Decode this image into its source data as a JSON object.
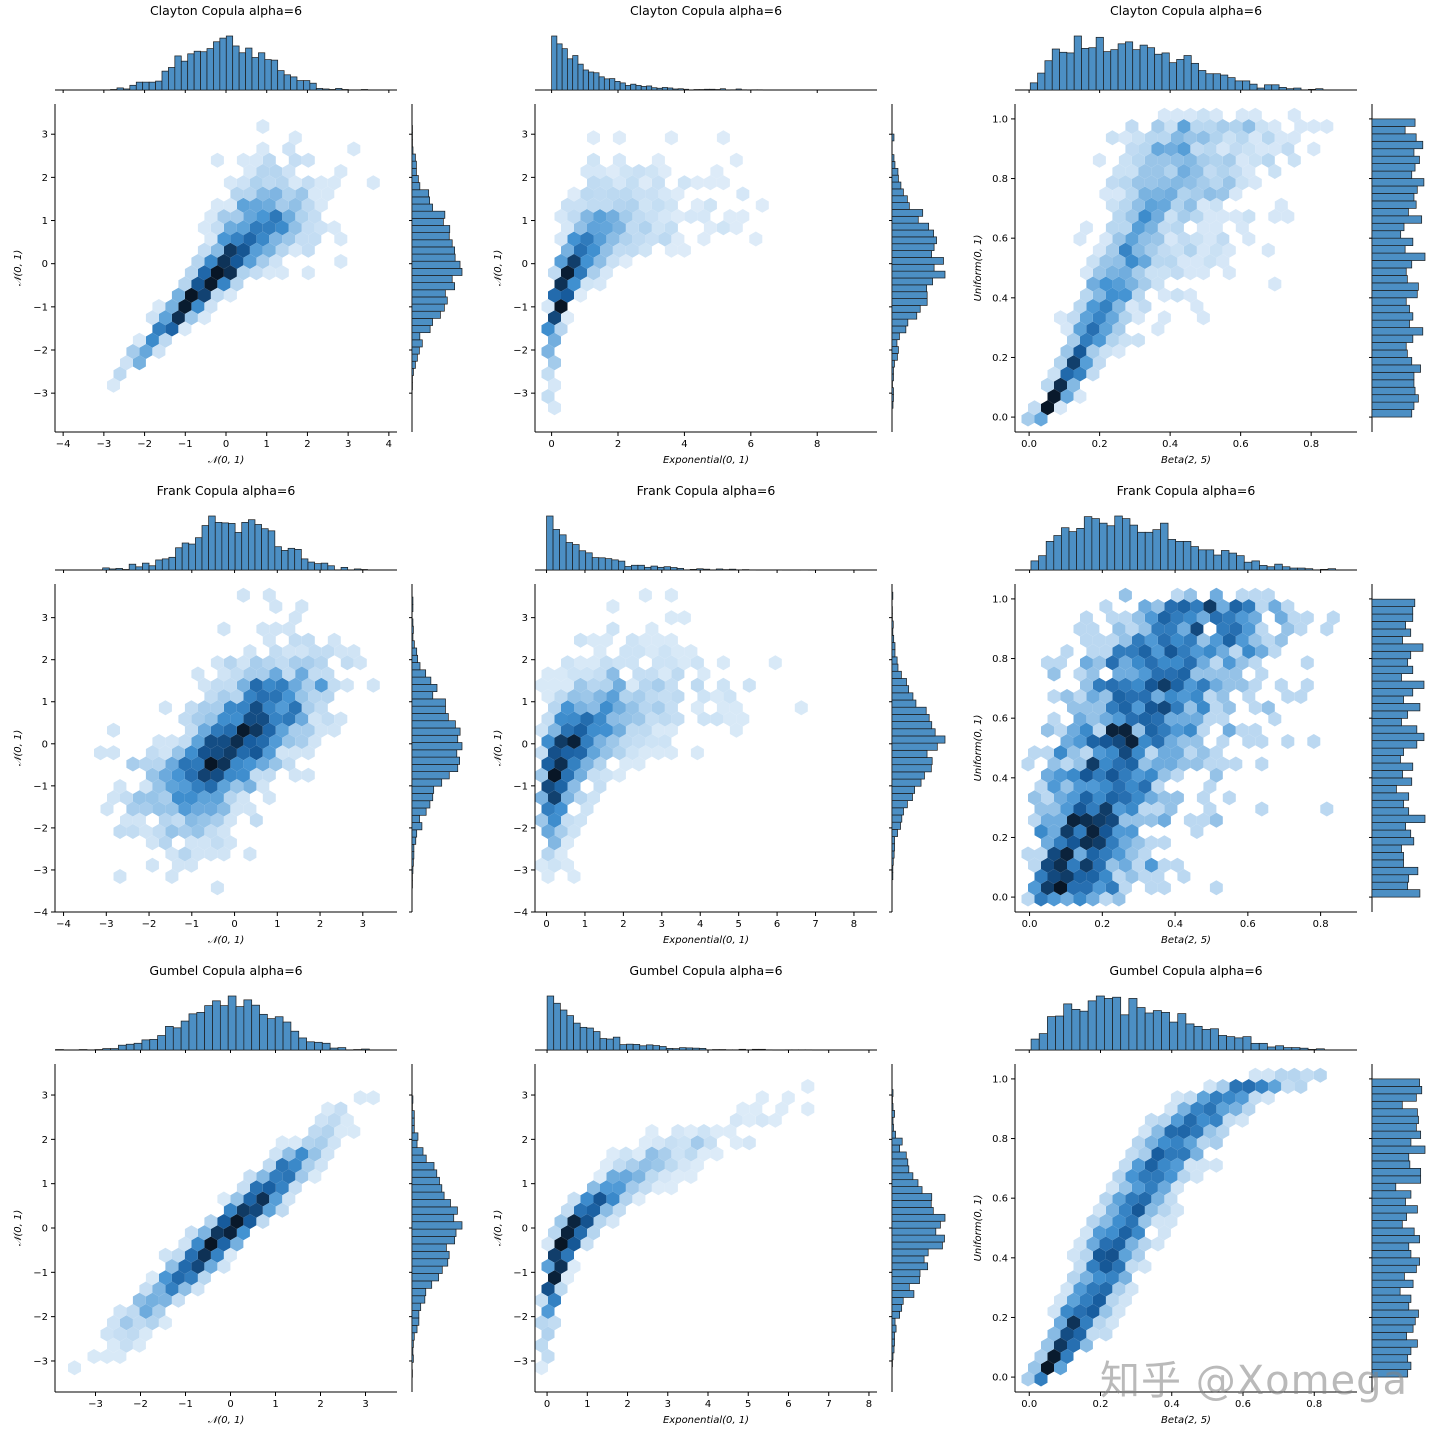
{
  "watermark": "知乎 @Xomega",
  "colors": {
    "bar": "#4c8fc4",
    "bar_edge": "#1a1a1a",
    "hex_light": "#e8f1fb",
    "hex_mid": "#3f8fd2",
    "hex_dark": "#0b1e33",
    "axis": "#000000"
  },
  "chart_data": [
    {
      "type": "hexbin",
      "title": "Clayton Copula alpha=6",
      "xlabel": "𝒩(0, 1)",
      "ylabel": "𝒩(0, 1)",
      "xlim": [
        -4.2,
        4.2
      ],
      "ylim": [
        -3.9,
        3.7
      ],
      "xticks": [
        -4,
        -3,
        -2,
        -1,
        0,
        1,
        2,
        3,
        4
      ],
      "yticks": [
        -3,
        -2,
        -1,
        0,
        1,
        2,
        3
      ],
      "copula": "clayton",
      "margin_x": "normal",
      "margin_y": "normal"
    },
    {
      "type": "hexbin",
      "title": "Clayton Copula alpha=6",
      "xlabel": "Exponential(0, 1)",
      "ylabel": "𝒩(0, 1)",
      "xlim": [
        -0.5,
        9.8
      ],
      "ylim": [
        -3.9,
        3.7
      ],
      "xticks": [
        0,
        2,
        4,
        6,
        8
      ],
      "yticks": [
        -3,
        -2,
        -1,
        0,
        1,
        2,
        3
      ],
      "copula": "clayton",
      "margin_x": "exponential",
      "margin_y": "normal"
    },
    {
      "type": "hexbin",
      "title": "Clayton Copula alpha=6",
      "xlabel": "Beta(2, 5)",
      "ylabel": "Uniform(0, 1)",
      "xlim": [
        -0.04,
        0.93
      ],
      "ylim": [
        -0.05,
        1.05
      ],
      "xticks": [
        0.0,
        0.2,
        0.4,
        0.6,
        0.8
      ],
      "yticks": [
        0.0,
        0.2,
        0.4,
        0.6,
        0.8,
        1.0
      ],
      "copula": "clayton",
      "margin_x": "beta",
      "margin_y": "uniform"
    },
    {
      "type": "hexbin",
      "title": "Frank Copula alpha=6",
      "xlabel": "𝒩(0, 1)",
      "ylabel": "𝒩(0, 1)",
      "xlim": [
        -4.2,
        3.8
      ],
      "ylim": [
        -4.0,
        3.8
      ],
      "xticks": [
        -4,
        -3,
        -2,
        -1,
        0,
        1,
        2,
        3
      ],
      "yticks": [
        -4,
        -3,
        -2,
        -1,
        0,
        1,
        2,
        3
      ],
      "copula": "frank",
      "margin_x": "normal",
      "margin_y": "normal"
    },
    {
      "type": "hexbin",
      "title": "Frank Copula alpha=6",
      "xlabel": "Exponential(0, 1)",
      "ylabel": "𝒩(0, 1)",
      "xlim": [
        -0.3,
        8.6
      ],
      "ylim": [
        -4.0,
        3.8
      ],
      "xticks": [
        0,
        1,
        2,
        3,
        4,
        5,
        6,
        7,
        8
      ],
      "yticks": [
        -4,
        -3,
        -2,
        -1,
        0,
        1,
        2,
        3
      ],
      "copula": "frank",
      "margin_x": "exponential",
      "margin_y": "normal"
    },
    {
      "type": "hexbin",
      "title": "Frank Copula alpha=6",
      "xlabel": "Beta(2, 5)",
      "ylabel": "Uniform(0, 1)",
      "xlim": [
        -0.04,
        0.9
      ],
      "ylim": [
        -0.05,
        1.05
      ],
      "xticks": [
        0.0,
        0.2,
        0.4,
        0.6,
        0.8
      ],
      "yticks": [
        0.0,
        0.2,
        0.4,
        0.6,
        0.8,
        1.0
      ],
      "copula": "frank",
      "margin_x": "beta",
      "margin_y": "uniform"
    },
    {
      "type": "hexbin",
      "title": "Gumbel Copula alpha=6",
      "xlabel": "𝒩(0, 1)",
      "ylabel": "𝒩(0, 1)",
      "xlim": [
        -3.9,
        3.7
      ],
      "ylim": [
        -3.7,
        3.7
      ],
      "xticks": [
        -3,
        -2,
        -1,
        0,
        1,
        2,
        3
      ],
      "yticks": [
        -3,
        -2,
        -1,
        0,
        1,
        2,
        3
      ],
      "copula": "gumbel",
      "margin_x": "normal",
      "margin_y": "normal"
    },
    {
      "type": "hexbin",
      "title": "Gumbel Copula alpha=6",
      "xlabel": "Exponential(0, 1)",
      "ylabel": "𝒩(0, 1)",
      "xlim": [
        -0.3,
        8.2
      ],
      "ylim": [
        -3.7,
        3.7
      ],
      "xticks": [
        0,
        1,
        2,
        3,
        4,
        5,
        6,
        7,
        8
      ],
      "yticks": [
        -3,
        -2,
        -1,
        0,
        1,
        2,
        3
      ],
      "copula": "gumbel",
      "margin_x": "exponential",
      "margin_y": "normal"
    },
    {
      "type": "hexbin",
      "title": "Gumbel Copula alpha=6",
      "xlabel": "Beta(2, 5)",
      "ylabel": "Uniform(0, 1)",
      "xlim": [
        -0.04,
        0.92
      ],
      "ylim": [
        -0.05,
        1.05
      ],
      "xticks": [
        0.0,
        0.2,
        0.4,
        0.6,
        0.8
      ],
      "yticks": [
        0.0,
        0.2,
        0.4,
        0.6,
        0.8,
        1.0
      ],
      "copula": "gumbel",
      "margin_x": "beta",
      "margin_y": "uniform"
    }
  ]
}
